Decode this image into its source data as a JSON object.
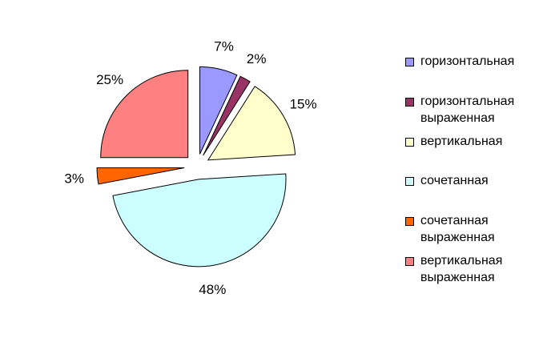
{
  "chart_data": {
    "type": "pie",
    "exploded": true,
    "legend_position": "right",
    "slices": [
      {
        "label": "горизонтальная",
        "value": 7,
        "value_label": "7%",
        "color": "#9999FF"
      },
      {
        "label": "горизонтальная выраженная",
        "value": 2,
        "value_label": "2%",
        "color": "#993366"
      },
      {
        "label": "вертикальная",
        "value": 15,
        "value_label": "15%",
        "color": "#FFFFCC"
      },
      {
        "label": "сочетанная",
        "value": 48,
        "value_label": "48%",
        "color": "#CCFFFF"
      },
      {
        "label": "сочетанная выраженная",
        "value": 3,
        "value_label": "3%",
        "color": "#FF6600"
      },
      {
        "label": "вертикальная выраженная",
        "value": 25,
        "value_label": "25%",
        "color": "#FF8080"
      }
    ]
  }
}
